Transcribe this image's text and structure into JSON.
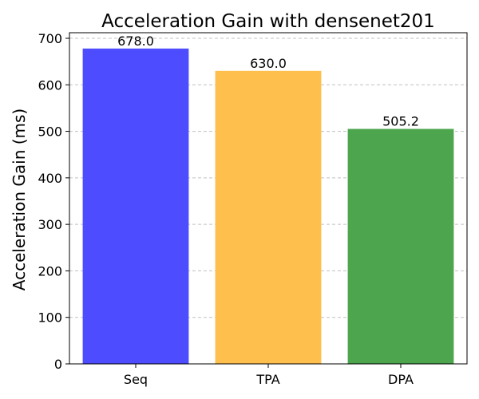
{
  "chart_data": {
    "type": "bar",
    "title": "Acceleration Gain with densenet201",
    "xlabel": "",
    "ylabel": "Acceleration Gain (ms)",
    "categories": [
      "Seq",
      "TPA",
      "DPA"
    ],
    "values": [
      678.0,
      630.0,
      505.2
    ],
    "value_labels": [
      "678.0",
      "630.0",
      "505.2"
    ],
    "bar_colors": [
      "#4d4dff",
      "#ffbf4d",
      "#4da64d"
    ],
    "ylim": [
      0,
      712
    ],
    "yticks": [
      0,
      100,
      200,
      300,
      400,
      500,
      600,
      700
    ],
    "grid": "horizontal dashed",
    "legend": "none"
  }
}
